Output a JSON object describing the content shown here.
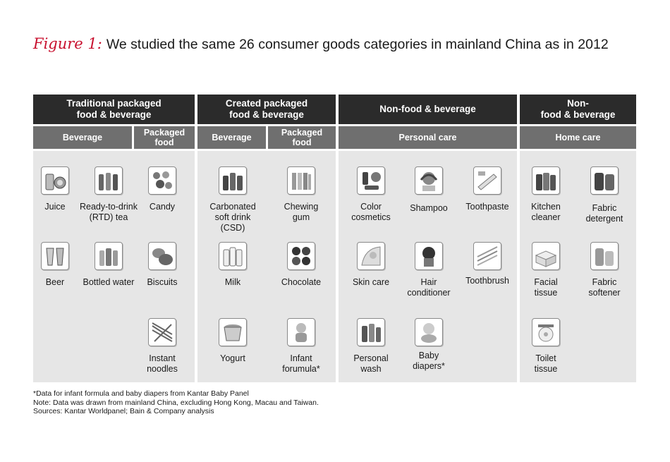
{
  "title": {
    "figure_label": "Figure 1:",
    "text": "We studied the same 26 consumer goods categories in mainland China as in 2012"
  },
  "groups": [
    {
      "name": "Traditional packaged\nfood & beverage"
    },
    {
      "name": "Created packaged\nfood & beverage"
    },
    {
      "name": "Non-food & beverage"
    },
    {
      "name": "Non-\nfood & beverage"
    }
  ],
  "subgroups": [
    {
      "name": "Beverage"
    },
    {
      "name": "Packaged\nfood"
    },
    {
      "name": "Beverage"
    },
    {
      "name": "Packaged\nfood"
    },
    {
      "name": "Personal care"
    },
    {
      "name": "Home care"
    }
  ],
  "items": [
    {
      "label": "Juice",
      "icon": "juice-icon"
    },
    {
      "label": "Ready-to-drink\n(RTD) tea",
      "icon": "tea-bottles-icon"
    },
    {
      "label": "Candy",
      "icon": "candy-icon"
    },
    {
      "label": "Beer",
      "icon": "beer-icon"
    },
    {
      "label": "Bottled water",
      "icon": "water-bottles-icon"
    },
    {
      "label": "Biscuits",
      "icon": "biscuits-icon"
    },
    {
      "label": "Instant\nnoodles",
      "icon": "noodles-icon"
    },
    {
      "label": "Carbonated\nsoft drink\n(CSD)",
      "icon": "soda-icon"
    },
    {
      "label": "Chewing\ngum",
      "icon": "gum-icon"
    },
    {
      "label": "Milk",
      "icon": "milk-icon"
    },
    {
      "label": "Chocolate",
      "icon": "chocolate-icon"
    },
    {
      "label": "Yogurt",
      "icon": "yogurt-icon"
    },
    {
      "label": "Infant\nforumula*",
      "icon": "baby-bottle-icon"
    },
    {
      "label": "Color\ncosmetics",
      "icon": "cosmetics-icon"
    },
    {
      "label": "Shampoo",
      "icon": "shampoo-icon"
    },
    {
      "label": "Toothpaste",
      "icon": "toothpaste-icon"
    },
    {
      "label": "Skin care",
      "icon": "skin-care-icon"
    },
    {
      "label": "Hair\nconditioner",
      "icon": "hair-icon"
    },
    {
      "label": "Toothbrush",
      "icon": "toothbrush-icon"
    },
    {
      "label": "Personal\nwash",
      "icon": "personal-wash-icon"
    },
    {
      "label": "Baby\ndiapers*",
      "icon": "baby-icon"
    },
    {
      "label": "Kitchen\ncleaner",
      "icon": "cleaner-icon"
    },
    {
      "label": "Fabric\ndetergent",
      "icon": "detergent-icon"
    },
    {
      "label": "Facial\ntissue",
      "icon": "tissue-box-icon"
    },
    {
      "label": "Fabric\nsoftener",
      "icon": "softener-icon"
    },
    {
      "label": "Toilet\ntissue",
      "icon": "toilet-roll-icon"
    }
  ],
  "notes": [
    "*Data for infant formula and baby diapers from Kantar Baby Panel",
    "Note: Data was drawn from mainland China, excluding Hong Kong, Macau and Taiwan.",
    "Sources: Kantar Worldpanel; Bain & Company analysis"
  ]
}
